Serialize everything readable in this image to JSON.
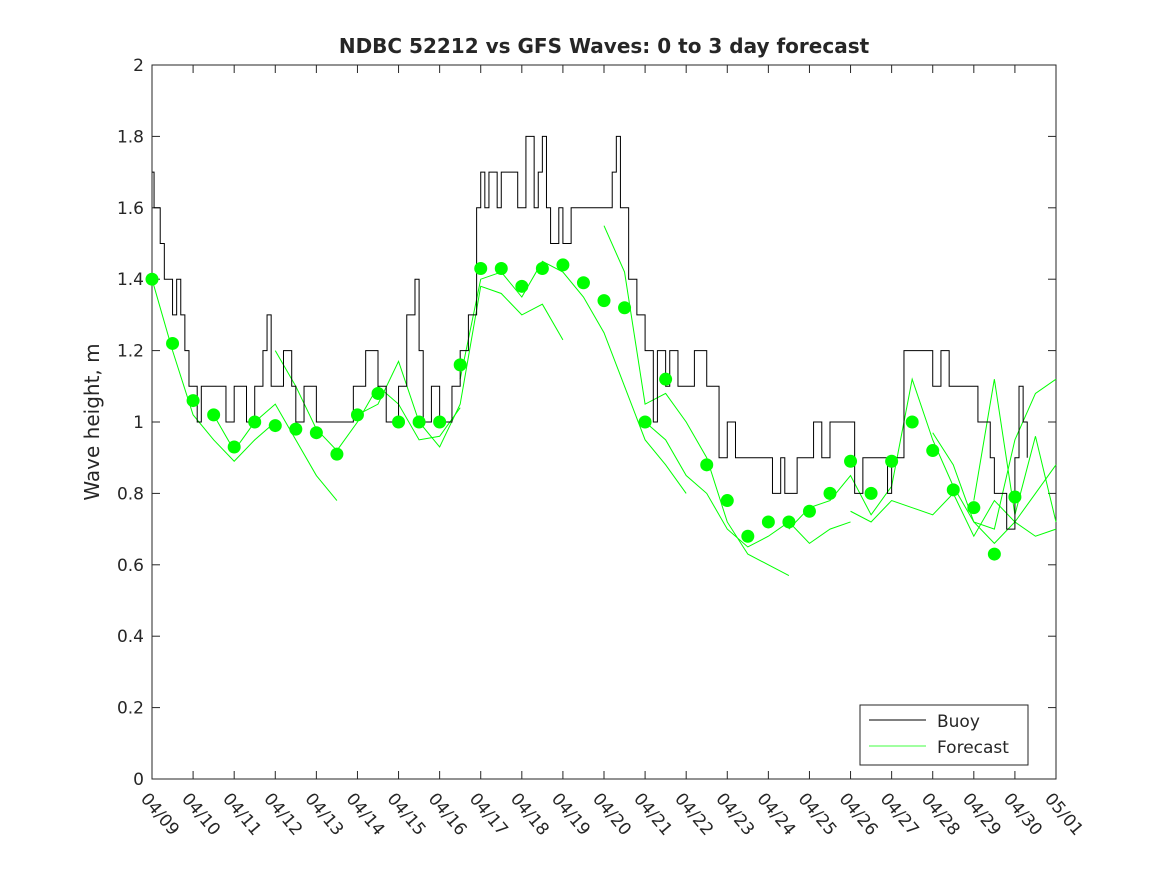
{
  "chart_data": {
    "type": "line",
    "title": "NDBC 52212 vs GFS Waves: 0 to 3 day forecast",
    "xlabel": "",
    "ylabel": "Wave height, m",
    "ylim": [
      0,
      2
    ],
    "xlim_days": [
      0,
      22
    ],
    "yticks": [
      "0",
      "0.2",
      "0.4",
      "0.6",
      "0.8",
      "1",
      "1.2",
      "1.4",
      "1.6",
      "1.8",
      "2"
    ],
    "xticks": [
      "04/09",
      "04/10",
      "04/11",
      "04/12",
      "04/13",
      "04/14",
      "04/15",
      "04/16",
      "04/17",
      "04/18",
      "04/19",
      "04/20",
      "04/21",
      "04/22",
      "04/23",
      "04/24",
      "04/25",
      "04/26",
      "04/27",
      "04/28",
      "04/29",
      "04/30",
      "05/01"
    ],
    "legend": {
      "placement": "bottom-right",
      "entries": [
        "Buoy",
        "Forecast"
      ]
    },
    "colors": {
      "buoy": "#000000",
      "forecast": "#00ff00"
    },
    "buoy": {
      "x": [
        0,
        0.05,
        0.15,
        0.2,
        0.3,
        0.5,
        0.6,
        0.7,
        0.8,
        0.9,
        1.0,
        1.1,
        1.2,
        1.5,
        1.8,
        2.0,
        2.3,
        2.5,
        2.7,
        2.8,
        2.9,
        3.2,
        3.4,
        3.5,
        3.7,
        4.0,
        4.3,
        4.8,
        4.9,
        5.2,
        5.5,
        5.7,
        6.0,
        6.2,
        6.4,
        6.5,
        6.6,
        6.8,
        7.0,
        7.3,
        7.5,
        7.7,
        7.9,
        8.0,
        8.1,
        8.2,
        8.4,
        8.5,
        8.9,
        9.1,
        9.3,
        9.4,
        9.5,
        9.6,
        9.7,
        9.9,
        10.0,
        10.2,
        11.0,
        11.2,
        11.3,
        11.4,
        11.6,
        11.8,
        12.0,
        12.2,
        12.3,
        12.5,
        12.6,
        12.8,
        13.1,
        13.2,
        13.3,
        13.5,
        13.8,
        14.0,
        14.2,
        15.0,
        15.1,
        15.3,
        15.4,
        15.7,
        16.0,
        16.1,
        16.3,
        16.5,
        17.0,
        17.1,
        17.3,
        17.8,
        17.9,
        18.0,
        18.3,
        18.5,
        19.0,
        19.2,
        19.4,
        19.8,
        20.1,
        20.4,
        20.5,
        20.8,
        21.0,
        21.1,
        21.2,
        21.3
      ],
      "y": [
        1.7,
        1.6,
        1.6,
        1.5,
        1.4,
        1.3,
        1.4,
        1.3,
        1.2,
        1.1,
        1.1,
        1.0,
        1.1,
        1.1,
        1.0,
        1.1,
        1.0,
        1.1,
        1.2,
        1.3,
        1.1,
        1.2,
        1.1,
        1.0,
        1.1,
        1.0,
        1.0,
        1.0,
        1.1,
        1.2,
        1.1,
        1.0,
        1.1,
        1.3,
        1.4,
        1.2,
        1.0,
        1.1,
        1.0,
        1.1,
        1.2,
        1.3,
        1.6,
        1.7,
        1.6,
        1.7,
        1.6,
        1.7,
        1.6,
        1.8,
        1.6,
        1.7,
        1.8,
        1.6,
        1.5,
        1.6,
        1.5,
        1.6,
        1.6,
        1.7,
        1.8,
        1.6,
        1.4,
        1.3,
        1.2,
        1.0,
        1.2,
        1.1,
        1.2,
        1.1,
        1.1,
        1.2,
        1.2,
        1.1,
        0.9,
        1.0,
        0.9,
        0.9,
        0.8,
        0.9,
        0.8,
        0.9,
        0.9,
        1.0,
        0.9,
        1.0,
        1.0,
        0.8,
        0.9,
        0.9,
        0.8,
        0.9,
        1.2,
        1.2,
        1.1,
        1.2,
        1.1,
        1.1,
        1.0,
        0.9,
        0.8,
        0.7,
        0.9,
        1.1,
        1.0,
        0.9
      ]
    },
    "forecast_dots": {
      "x": [
        0,
        0.5,
        1,
        1.5,
        2,
        2.5,
        3,
        3.5,
        4,
        4.5,
        5,
        5.5,
        6,
        6.5,
        7,
        7.5,
        8,
        8.5,
        9,
        9.5,
        10,
        10.5,
        11,
        11.5,
        12,
        12.5,
        13.5,
        14,
        14.5,
        15,
        15.5,
        16,
        16.5,
        17,
        17.5,
        18,
        18.5,
        19,
        19.5,
        20,
        20.5,
        21
      ],
      "y": [
        1.4,
        1.22,
        1.06,
        1.02,
        0.93,
        1.0,
        0.99,
        0.98,
        0.97,
        0.91,
        1.02,
        1.08,
        1.0,
        1.0,
        1.0,
        1.16,
        1.43,
        1.43,
        1.38,
        1.43,
        1.44,
        1.39,
        1.34,
        1.32,
        1.0,
        1.12,
        0.88,
        0.78,
        0.68,
        0.72,
        0.72,
        0.75,
        0.8,
        0.89,
        0.8,
        0.89,
        1.0,
        0.92,
        0.81,
        0.76,
        0.63,
        0.79
      ]
    },
    "forecast_lines": [
      {
        "x": [
          0,
          0.5,
          1,
          1.5,
          2,
          2.5,
          3
        ],
        "y": [
          1.4,
          1.2,
          1.02,
          0.95,
          0.89,
          0.95,
          1.0
        ]
      },
      {
        "x": [
          1.5,
          2,
          2.5,
          3,
          3.5,
          4,
          4.5
        ],
        "y": [
          1.02,
          0.92,
          1.0,
          1.05,
          0.95,
          0.85,
          0.78
        ]
      },
      {
        "x": [
          3,
          3.5,
          4,
          4.5,
          5,
          5.5,
          6,
          6.5,
          7,
          7.5
        ],
        "y": [
          1.2,
          1.1,
          0.98,
          0.92,
          1.0,
          1.1,
          1.05,
          0.95,
          0.96,
          1.04
        ]
      },
      {
        "x": [
          5,
          5.5,
          6,
          6.5,
          7,
          7.5,
          8,
          8.5,
          9,
          9.5,
          10
        ],
        "y": [
          1.02,
          1.05,
          1.17,
          1.0,
          0.93,
          1.05,
          1.38,
          1.36,
          1.3,
          1.33,
          1.23
        ]
      },
      {
        "x": [
          7.5,
          8,
          8.5,
          9,
          9.5,
          10,
          10.5,
          11,
          11.5,
          12,
          12.5,
          13
        ],
        "y": [
          1.12,
          1.4,
          1.42,
          1.35,
          1.45,
          1.42,
          1.35,
          1.25,
          1.1,
          0.95,
          0.88,
          0.8
        ]
      },
      {
        "x": [
          11,
          11.5,
          12,
          12.5,
          13,
          13.5,
          14,
          14.5,
          15,
          15.5
        ],
        "y": [
          1.55,
          1.42,
          1.05,
          1.08,
          1.0,
          0.9,
          0.72,
          0.63,
          0.6,
          0.57
        ]
      },
      {
        "x": [
          12,
          12.5,
          13,
          13.5,
          14,
          14.5,
          15,
          15.5,
          16,
          16.5,
          17
        ],
        "y": [
          1.0,
          0.95,
          0.85,
          0.8,
          0.7,
          0.65,
          0.68,
          0.72,
          0.66,
          0.7,
          0.72
        ]
      },
      {
        "x": [
          15.5,
          16,
          16.5,
          17,
          17.5,
          18,
          18.5,
          19,
          19.5,
          20,
          20.5,
          21,
          21.5,
          22
        ],
        "y": [
          0.7,
          0.76,
          0.78,
          0.85,
          0.74,
          0.82,
          1.12,
          0.95,
          0.82,
          0.72,
          0.66,
          0.72,
          0.68,
          0.7
        ]
      },
      {
        "x": [
          17,
          17.5,
          18,
          18.5,
          19,
          19.5,
          20,
          20.5,
          21,
          21.5,
          22
        ],
        "y": [
          0.75,
          0.72,
          0.78,
          0.76,
          0.74,
          0.8,
          0.68,
          0.78,
          0.72,
          0.8,
          0.88
        ]
      },
      {
        "x": [
          19,
          19.5,
          20,
          20.5,
          21,
          21.5,
          22
        ],
        "y": [
          0.97,
          0.88,
          0.72,
          0.7,
          0.95,
          1.08,
          1.12
        ]
      },
      {
        "x": [
          20,
          20.5,
          21,
          21.5,
          22
        ],
        "y": [
          0.78,
          1.12,
          0.74,
          0.96,
          0.72
        ]
      }
    ]
  }
}
